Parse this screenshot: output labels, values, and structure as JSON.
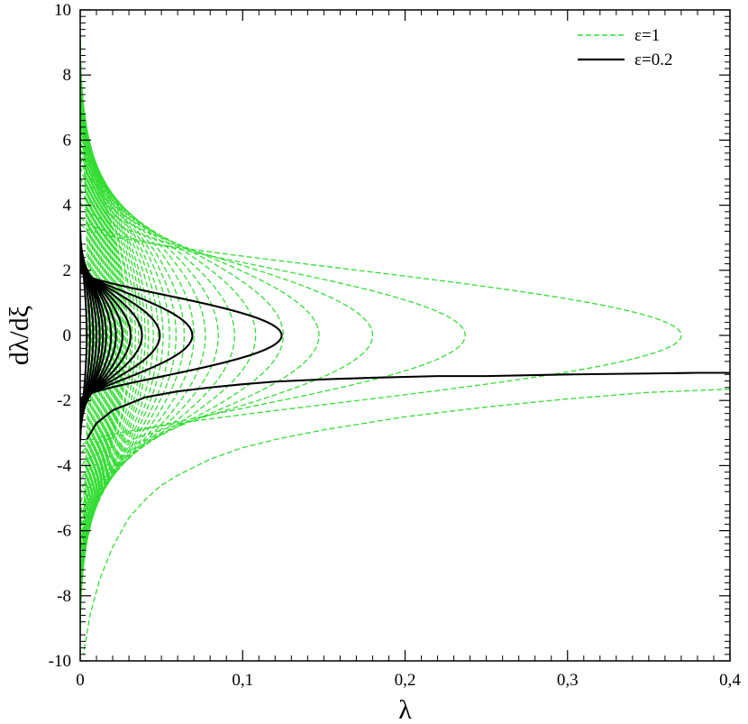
{
  "chart_data": {
    "type": "line",
    "title": "",
    "xlabel": "λ",
    "ylabel": "dλ/dξ",
    "xlim": [
      0,
      0.4
    ],
    "ylim": [
      -10,
      10
    ],
    "x_ticks": [
      0,
      0.1,
      0.2,
      0.3,
      0.4
    ],
    "x_tick_labels": [
      "0",
      "0,1",
      "0,2",
      "0,3",
      "0,4"
    ],
    "y_ticks": [
      -10,
      -8,
      -6,
      -4,
      -2,
      0,
      2,
      4,
      6,
      8,
      10
    ],
    "y_tick_labels": [
      "-10",
      "-8",
      "-6",
      "-4",
      "-2",
      "0",
      "2",
      "4",
      "6",
      "8",
      "10"
    ],
    "grid": false,
    "legend_position": "top-right",
    "series": [
      {
        "name": "ε=1",
        "color": "#33dd33",
        "style": "dashed",
        "amplitudes": [
          0.37,
          0.237,
          0.18,
          0.147,
          0.125,
          0.108,
          0.095,
          0.085,
          0.077,
          0.07,
          0.064,
          0.059,
          0.055,
          0.051,
          0.048,
          0.045,
          0.042,
          0.04,
          0.038,
          0.036,
          0.034,
          0.032,
          0.031,
          0.029,
          0.028,
          0.027,
          0.026,
          0.025,
          0.024,
          0.023,
          0.022,
          0.021,
          0.02,
          0.019,
          0.018,
          0.017,
          0.016,
          0.015,
          0.014,
          0.013,
          0.012,
          0.011,
          0.01,
          0.009,
          0.008,
          0.007,
          0.006,
          0.005
        ],
        "escape_curve": [
          [
            0.4,
            -1.65
          ],
          [
            0.35,
            -1.75
          ],
          [
            0.3,
            -1.95
          ],
          [
            0.25,
            -2.2
          ],
          [
            0.2,
            -2.5
          ],
          [
            0.15,
            -2.9
          ],
          [
            0.12,
            -3.2
          ],
          [
            0.1,
            -3.45
          ],
          [
            0.08,
            -3.8
          ],
          [
            0.06,
            -4.3
          ],
          [
            0.05,
            -4.6
          ],
          [
            0.04,
            -5.05
          ],
          [
            0.03,
            -5.6
          ],
          [
            0.02,
            -6.5
          ],
          [
            0.012,
            -7.5
          ],
          [
            0.006,
            -8.6
          ],
          [
            0.002,
            -9.8
          ]
        ]
      },
      {
        "name": "ε=0.2",
        "color": "#000000",
        "style": "solid",
        "amplitudes": [
          0.124,
          0.069,
          0.049,
          0.038,
          0.031,
          0.026,
          0.022,
          0.019,
          0.016,
          0.014,
          0.012,
          0.01,
          0.008,
          0.006,
          0.004
        ],
        "escape_curve": [
          [
            0.4,
            -1.15
          ],
          [
            0.38,
            -1.15
          ],
          [
            0.35,
            -1.17
          ],
          [
            0.3,
            -1.2
          ],
          [
            0.25,
            -1.25
          ],
          [
            0.22,
            -1.25
          ],
          [
            0.18,
            -1.3
          ],
          [
            0.15,
            -1.35
          ],
          [
            0.12,
            -1.42
          ],
          [
            0.1,
            -1.5
          ],
          [
            0.08,
            -1.6
          ],
          [
            0.06,
            -1.72
          ],
          [
            0.04,
            -1.9
          ],
          [
            0.02,
            -2.3
          ],
          [
            0.01,
            -2.7
          ],
          [
            0.004,
            -3.2
          ]
        ]
      }
    ]
  }
}
